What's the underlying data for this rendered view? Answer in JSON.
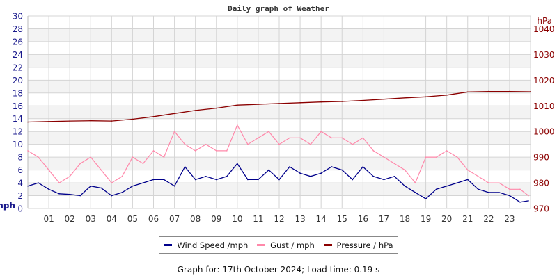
{
  "chart_data": {
    "type": "line",
    "title": "Daily graph of Weather",
    "left_axis": {
      "label": "mph",
      "range": [
        0,
        30
      ],
      "ticks": [
        0,
        2,
        4,
        6,
        8,
        10,
        12,
        14,
        16,
        18,
        20,
        22,
        24,
        26,
        28,
        30
      ],
      "color": "#1a1a8c"
    },
    "right_axis": {
      "label": "hPa",
      "range": [
        970,
        1045
      ],
      "ticks": [
        970,
        980,
        990,
        1000,
        1010,
        1020,
        1030,
        1040
      ],
      "color": "#8b0000"
    },
    "x_axis": {
      "range": [
        0,
        24
      ],
      "tick_labels": [
        "01",
        "02",
        "03",
        "04",
        "05",
        "06",
        "07",
        "08",
        "09",
        "10",
        "11",
        "12",
        "13",
        "14",
        "15",
        "16",
        "17",
        "18",
        "19",
        "20",
        "21",
        "22",
        "23"
      ]
    },
    "grid": true,
    "legend_placement": "bottom",
    "series": [
      {
        "name": "Wind Speed /mph",
        "axis": "left",
        "color": "#00008b",
        "x": [
          0,
          0.5,
          1,
          1.5,
          2,
          2.5,
          3,
          3.5,
          4,
          4.5,
          5,
          5.5,
          6,
          6.5,
          7,
          7.5,
          8,
          8.5,
          9,
          9.5,
          10,
          10.5,
          11,
          11.5,
          12,
          12.5,
          13,
          13.5,
          14,
          14.5,
          15,
          15.5,
          16,
          16.5,
          17,
          17.5,
          18,
          18.5,
          19,
          19.5,
          20,
          20.5,
          21,
          21.5,
          22,
          22.5,
          23,
          23.5,
          23.9
        ],
        "values": [
          3.5,
          4,
          3,
          2.3,
          2.2,
          2,
          3.5,
          3.2,
          2,
          2.5,
          3.5,
          4,
          4.5,
          4.5,
          3.5,
          6.5,
          4.5,
          5,
          4.5,
          5,
          7,
          4.5,
          4.5,
          6,
          4.5,
          6.5,
          5.5,
          5,
          5.5,
          6.5,
          6,
          4.5,
          6.5,
          5,
          4.5,
          5,
          3.5,
          2.5,
          1.5,
          3,
          3.5,
          4,
          4.5,
          3,
          2.5,
          2.5,
          2,
          1,
          1.2
        ]
      },
      {
        "name": "Gust / mph",
        "axis": "left",
        "color": "#ff88aa",
        "x": [
          0,
          0.5,
          1,
          1.5,
          2,
          2.5,
          3,
          3.5,
          4,
          4.5,
          5,
          5.5,
          6,
          6.5,
          7,
          7.5,
          8,
          8.5,
          9,
          9.5,
          10,
          10.5,
          11,
          11.5,
          12,
          12.5,
          13,
          13.5,
          14,
          14.5,
          15,
          15.5,
          16,
          16.5,
          17,
          17.5,
          18,
          18.5,
          19,
          19.5,
          20,
          20.5,
          21,
          21.5,
          22,
          22.5,
          23,
          23.5,
          23.9
        ],
        "values": [
          9,
          8,
          6,
          4,
          5,
          7,
          8,
          6,
          4,
          5,
          8,
          7,
          9,
          8,
          12,
          10,
          9,
          10,
          9,
          9,
          13,
          10,
          11,
          12,
          10,
          11,
          11,
          10,
          12,
          11,
          11,
          10,
          11,
          9,
          8,
          7,
          6,
          4,
          8,
          8,
          9,
          8,
          6,
          5,
          4,
          4,
          3,
          3,
          2
        ]
      },
      {
        "name": "Pressure / hPa",
        "axis": "right",
        "color": "#8b0000",
        "x": [
          0,
          1,
          2,
          3,
          4,
          5,
          6,
          7,
          8,
          9,
          10,
          11,
          12,
          13,
          14,
          15,
          16,
          17,
          18,
          19,
          20,
          21,
          22,
          23,
          24
        ],
        "values": [
          1003.7,
          1003.9,
          1004.1,
          1004.2,
          1004.1,
          1004.8,
          1005.8,
          1007,
          1008.2,
          1009.1,
          1010.3,
          1010.6,
          1010.9,
          1011.2,
          1011.5,
          1011.7,
          1012.1,
          1012.6,
          1013.1,
          1013.5,
          1014.2,
          1015.4,
          1015.6,
          1015.6,
          1015.5
        ]
      }
    ]
  },
  "footer": "Graph for: 17th October 2024; Load time: 0.19 s"
}
